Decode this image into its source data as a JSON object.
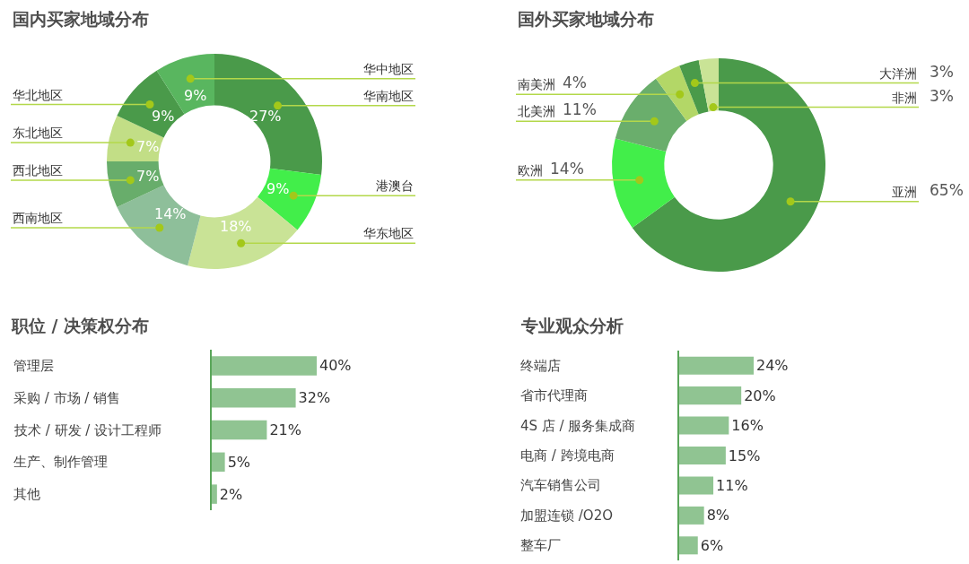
{
  "chart_data": [
    {
      "type": "donut",
      "title": "国内买家地域分布",
      "categories": [
        "华南地区",
        "港澳台",
        "华东地区",
        "西南地区",
        "西北地区",
        "东北地区",
        "华北地区",
        "华中地区"
      ],
      "values": [
        27,
        9,
        18,
        14,
        7,
        7,
        9,
        9
      ],
      "colors": [
        "#4a9a4a",
        "#42ee4a",
        "#c9e396",
        "#8ebf9a",
        "#68ad6b",
        "#c2de86",
        "#4a9a4a",
        "#59b65f"
      ],
      "value_labels": [
        "27%",
        "9%",
        "18%",
        "14%",
        "7%",
        "7%",
        "9%",
        "9%"
      ]
    },
    {
      "type": "donut",
      "title": "国外买家地域分布",
      "categories": [
        "亚洲",
        "欧洲",
        "北美洲",
        "南美洲",
        "大洋洲",
        "非洲"
      ],
      "values": [
        65,
        14,
        11,
        4,
        3,
        3
      ],
      "colors": [
        "#4a9a4a",
        "#42ee4a",
        "#6aae6c",
        "#b3d767",
        "#4a9a4a",
        "#c9e396"
      ],
      "value_labels": [
        "65%",
        "14%",
        "11%",
        "4%",
        "3%",
        "3%"
      ]
    },
    {
      "type": "bar",
      "orientation": "horizontal",
      "title": "职位 / 决策权分布",
      "categories": [
        "管理层",
        "采购 / 市场 / 销售",
        "技术 / 研发 / 设计工程师",
        "生产、制作管理",
        "其他"
      ],
      "values": [
        40,
        32,
        21,
        5,
        2
      ],
      "color": "#90c492",
      "value_labels": [
        "40%",
        "32%",
        "21%",
        "5%",
        "2%"
      ]
    },
    {
      "type": "bar",
      "orientation": "horizontal",
      "title": "专业观众分析",
      "categories": [
        "终端店",
        "省市代理商",
        "4S 店 / 服务集成商",
        "电商 / 跨境电商",
        "汽车销售公司",
        "加盟连锁 /O2O",
        "整车厂"
      ],
      "values": [
        24,
        20,
        16,
        15,
        11,
        8,
        6
      ],
      "color": "#90c492",
      "value_labels": [
        "24%",
        "20%",
        "16%",
        "15%",
        "11%",
        "8%",
        "6%"
      ]
    }
  ]
}
